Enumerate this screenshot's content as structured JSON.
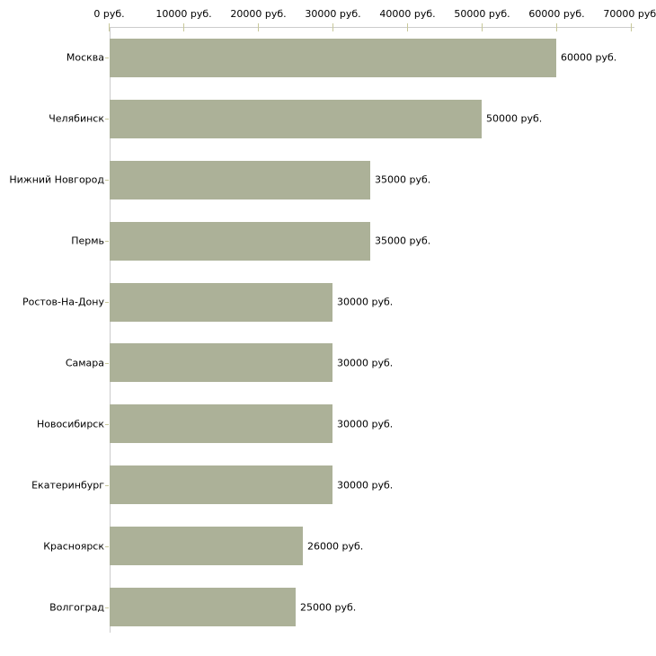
{
  "chart_data": {
    "type": "bar",
    "orientation": "horizontal",
    "title": "",
    "xlabel": "",
    "ylabel": "",
    "xlim": [
      0,
      70000
    ],
    "grid": false,
    "legend_position": "none",
    "x_tick_values": [
      0,
      10000,
      20000,
      30000,
      40000,
      50000,
      60000,
      70000
    ],
    "x_tick_labels": [
      "0 руб.",
      "10000 руб.",
      "20000 руб.",
      "30000 руб.",
      "40000 руб.",
      "50000 руб.",
      "60000 руб.",
      "70000 руб."
    ],
    "categories": [
      "Москва",
      "Челябинск",
      "Нижний Новгород",
      "Пермь",
      "Ростов-На-Дону",
      "Самара",
      "Новосибирск",
      "Екатеринбург",
      "Красноярск",
      "Волгоград"
    ],
    "values": [
      60000,
      50000,
      35000,
      35000,
      30000,
      30000,
      30000,
      30000,
      26000,
      25000
    ],
    "value_labels": [
      "60000 руб.",
      "50000 руб.",
      "35000 руб.",
      "35000 руб.",
      "30000 руб.",
      "30000 руб.",
      "30000 руб.",
      "30000 руб.",
      "26000 руб.",
      "25000 руб."
    ],
    "colors": {
      "bar": "#acb198",
      "axis_line": "#cccccc",
      "tick_mark": "#c8c89a",
      "text": "#000000",
      "background": "#ffffff"
    }
  }
}
